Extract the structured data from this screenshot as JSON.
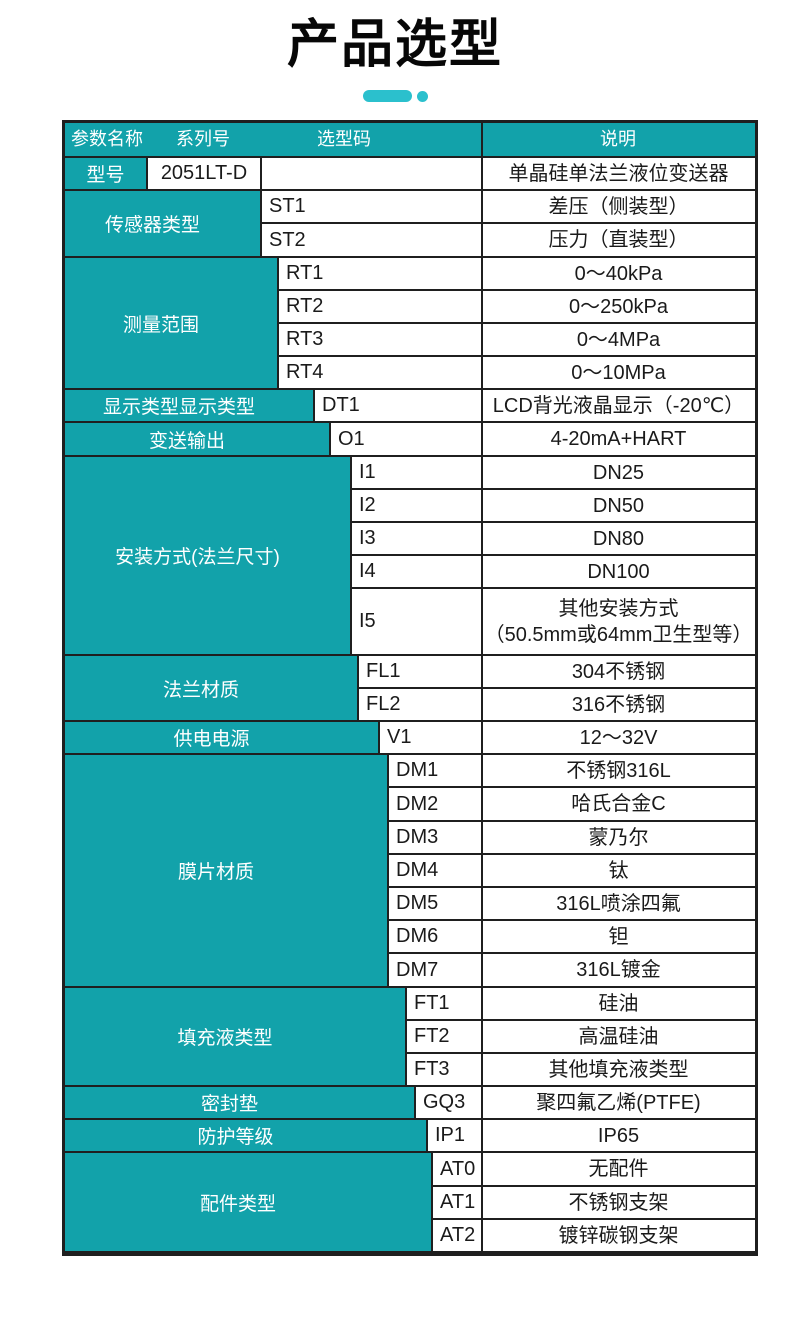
{
  "page": {
    "title": "产品选型"
  },
  "colors": {
    "table_teal": "#12A2AA",
    "accent_teal": "#2BC0CD",
    "border": "#1F1F1F",
    "text_dark": "#1A1A1A",
    "text_light": "#FFFFFF"
  },
  "table": {
    "headers": [
      {
        "key": "param",
        "label": "参数名称"
      },
      {
        "key": "series",
        "label": "系列号"
      },
      {
        "key": "code",
        "label": "选型码"
      },
      {
        "key": "desc",
        "label": "说明"
      }
    ],
    "model_row": {
      "param": "型号",
      "series": "2051LT-D",
      "code": "",
      "desc": "单晶硅单法兰液位变送器"
    },
    "groups": [
      {
        "param": "传感器类型",
        "rows": [
          {
            "code": "ST1",
            "desc": "差压（侧装型）"
          },
          {
            "code": "ST2",
            "desc": "压力（直装型）"
          }
        ]
      },
      {
        "param": "测量范围",
        "rows": [
          {
            "code": "RT1",
            "desc": "0～40kPa"
          },
          {
            "code": "RT2",
            "desc": "0～250kPa"
          },
          {
            "code": "RT3",
            "desc": "0～4MPa"
          },
          {
            "code": "RT4",
            "desc": "0～10MPa"
          }
        ]
      },
      {
        "param": "显示类型显示类型",
        "rows": [
          {
            "code": "DT1",
            "desc": "LCD背光液晶显示（-20℃）"
          }
        ]
      },
      {
        "param": "变送输出",
        "rows": [
          {
            "code": "O1",
            "desc": "4-20mA+HART"
          }
        ]
      },
      {
        "param": "安装方式(法兰尺寸)",
        "rows": [
          {
            "code": "I1",
            "desc": "DN25"
          },
          {
            "code": "I2",
            "desc": "DN50"
          },
          {
            "code": "I3",
            "desc": "DN80"
          },
          {
            "code": "I4",
            "desc": "DN100"
          },
          {
            "code": "I5",
            "desc_lines": [
              "其他安装方式",
              "（50.5mm或64mm卫生型等）"
            ],
            "units": 2
          }
        ]
      },
      {
        "param": "法兰材质",
        "rows": [
          {
            "code": "FL1",
            "desc": "304不锈钢"
          },
          {
            "code": "FL2",
            "desc": "316不锈钢"
          }
        ]
      },
      {
        "param": "供电电源",
        "rows": [
          {
            "code": "V1",
            "desc": "12～32V"
          }
        ]
      },
      {
        "param": "膜片材质",
        "rows": [
          {
            "code": "DM1",
            "desc": "不锈钢316L"
          },
          {
            "code": "DM2",
            "desc": "哈氏合金C"
          },
          {
            "code": "DM3",
            "desc": "蒙乃尔"
          },
          {
            "code": "DM4",
            "desc": "钛"
          },
          {
            "code": "DM5",
            "desc": "316L喷涂四氟"
          },
          {
            "code": "DM6",
            "desc": "钽"
          },
          {
            "code": "DM7",
            "desc": "316L镀金"
          }
        ]
      },
      {
        "param": "填充液类型",
        "rows": [
          {
            "code": "FT1",
            "desc": "硅油"
          },
          {
            "code": "FT2",
            "desc": "高温硅油"
          },
          {
            "code": "FT3",
            "desc": "其他填充液类型"
          }
        ]
      },
      {
        "param": "密封垫",
        "rows": [
          {
            "code": "GQ3",
            "desc": "聚四氟乙烯(PTFE)"
          }
        ]
      },
      {
        "param": "防护等级",
        "rows": [
          {
            "code": "IP1",
            "desc": "IP65"
          }
        ]
      },
      {
        "param": "配件类型",
        "rows": [
          {
            "code": "AT0",
            "desc": "无配件"
          },
          {
            "code": "AT1",
            "desc": "不锈钢支架"
          },
          {
            "code": "AT2",
            "desc": "镀锌碳钢支架"
          }
        ]
      }
    ]
  }
}
